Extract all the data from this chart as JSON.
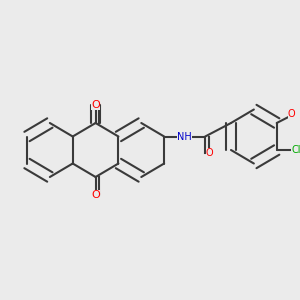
{
  "background_color": "#ebebeb",
  "bond_color": "#3a3a3a",
  "bond_width": 1.5,
  "atom_colors": {
    "O": "#ff0000",
    "N": "#0000cc",
    "Cl": "#00aa00",
    "C": "#3a3a3a",
    "H": "#3a3a3a"
  },
  "font_size_atoms": 7,
  "font_size_small": 6
}
